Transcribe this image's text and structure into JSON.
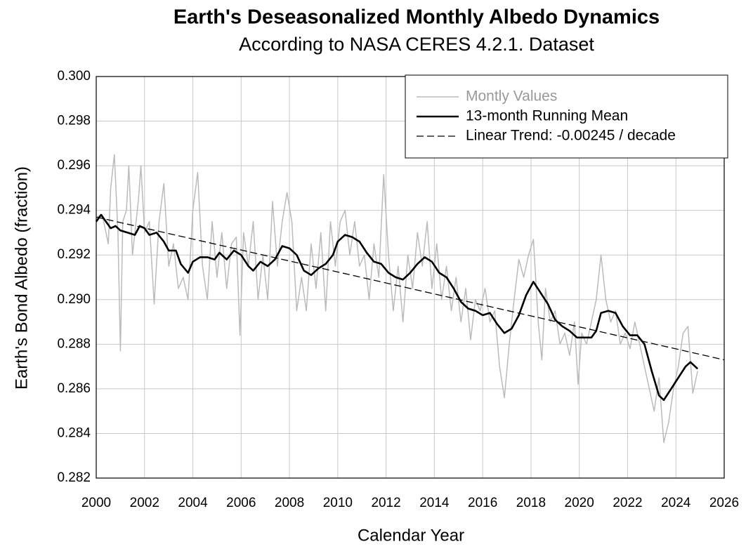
{
  "chart_data": {
    "type": "line",
    "title": "Earth's Deseasonalized Monthly Albedo Dynamics",
    "subtitle": "According to NASA CERES 4.2.1. Dataset",
    "x_label": "Calendar Year",
    "y_label": "Earth's Bond Albedo (fraction)",
    "xlim": [
      2000,
      2026
    ],
    "xticks": [
      2000,
      2002,
      2004,
      2006,
      2008,
      2010,
      2012,
      2014,
      2016,
      2018,
      2020,
      2022,
      2024,
      2026
    ],
    "ylim": [
      0.282,
      0.3
    ],
    "yticks": [
      {
        "value": 0.282,
        "label": "0.282"
      },
      {
        "value": 0.284,
        "label": "0.284"
      },
      {
        "value": 0.286,
        "label": "0.286"
      },
      {
        "value": 0.288,
        "label": "0.288"
      },
      {
        "value": 0.29,
        "label": "0.290"
      },
      {
        "value": 0.292,
        "label": "0.292"
      },
      {
        "value": 0.294,
        "label": "0.294"
      },
      {
        "value": 0.296,
        "label": "0.296"
      },
      {
        "value": 0.298,
        "label": "0.298"
      },
      {
        "value": 0.3,
        "label": "0.300"
      }
    ],
    "grid": true,
    "legend": "upper right",
    "series": [
      {
        "name": "Montly Values",
        "color": "#bbbbbb",
        "width": 1.5,
        "dash": false,
        "x": [
          2000.0,
          2000.25,
          2000.5,
          2000.6,
          2000.75,
          2000.9,
          2001.0,
          2001.1,
          2001.25,
          2001.35,
          2001.5,
          2001.75,
          2001.85,
          2002.0,
          2002.2,
          2002.4,
          2002.6,
          2002.8,
          2003.0,
          2003.2,
          2003.4,
          2003.6,
          2003.8,
          2004.0,
          2004.2,
          2004.4,
          2004.6,
          2004.8,
          2005.0,
          2005.2,
          2005.4,
          2005.6,
          2005.8,
          2005.95,
          2006.1,
          2006.3,
          2006.5,
          2006.7,
          2006.9,
          2007.1,
          2007.3,
          2007.5,
          2007.7,
          2007.9,
          2008.1,
          2008.3,
          2008.5,
          2008.7,
          2008.9,
          2009.1,
          2009.3,
          2009.5,
          2009.7,
          2009.9,
          2010.1,
          2010.3,
          2010.5,
          2010.7,
          2010.9,
          2011.1,
          2011.3,
          2011.5,
          2011.7,
          2011.9,
          2012.1,
          2012.3,
          2012.5,
          2012.7,
          2012.9,
          2013.1,
          2013.3,
          2013.5,
          2013.7,
          2013.9,
          2014.1,
          2014.3,
          2014.5,
          2014.7,
          2014.9,
          2015.1,
          2015.3,
          2015.5,
          2015.7,
          2015.9,
          2016.1,
          2016.3,
          2016.5,
          2016.7,
          2016.9,
          2017.1,
          2017.3,
          2017.5,
          2017.7,
          2017.9,
          2018.1,
          2018.3,
          2018.45,
          2018.6,
          2018.8,
          2019.0,
          2019.2,
          2019.4,
          2019.6,
          2019.8,
          2019.95,
          2020.1,
          2020.3,
          2020.5,
          2020.7,
          2020.9,
          2021.1,
          2021.3,
          2021.5,
          2021.7,
          2021.9,
          2022.1,
          2022.3,
          2022.5,
          2022.7,
          2022.9,
          2023.1,
          2023.3,
          2023.5,
          2023.7,
          2023.9,
          2024.1,
          2024.3,
          2024.5,
          2024.7,
          2024.9
        ],
        "values": [
          0.2937,
          0.2938,
          0.2925,
          0.295,
          0.2965,
          0.293,
          0.2877,
          0.2935,
          0.294,
          0.296,
          0.292,
          0.2945,
          0.296,
          0.293,
          0.2935,
          0.2898,
          0.2935,
          0.2952,
          0.2915,
          0.2925,
          0.2905,
          0.291,
          0.29,
          0.294,
          0.2957,
          0.2915,
          0.29,
          0.2935,
          0.291,
          0.293,
          0.2905,
          0.2925,
          0.2928,
          0.2884,
          0.293,
          0.2915,
          0.2935,
          0.29,
          0.292,
          0.29,
          0.2944,
          0.2915,
          0.2935,
          0.2948,
          0.2935,
          0.2895,
          0.291,
          0.2895,
          0.2925,
          0.2905,
          0.293,
          0.2895,
          0.2935,
          0.2915,
          0.2935,
          0.294,
          0.292,
          0.2935,
          0.2915,
          0.292,
          0.29,
          0.2925,
          0.291,
          0.2956,
          0.292,
          0.2895,
          0.2915,
          0.289,
          0.292,
          0.2905,
          0.293,
          0.2915,
          0.2935,
          0.2905,
          0.2925,
          0.29,
          0.2915,
          0.2895,
          0.291,
          0.289,
          0.2905,
          0.2882,
          0.29,
          0.2895,
          0.2905,
          0.289,
          0.2895,
          0.287,
          0.2856,
          0.288,
          0.29,
          0.2918,
          0.291,
          0.292,
          0.2927,
          0.289,
          0.2873,
          0.2905,
          0.289,
          0.2895,
          0.288,
          0.2885,
          0.2875,
          0.289,
          0.2862,
          0.2885,
          0.288,
          0.289,
          0.29,
          0.292,
          0.29,
          0.289,
          0.2895,
          0.288,
          0.2885,
          0.2878,
          0.289,
          0.288,
          0.287,
          0.286,
          0.285,
          0.2865,
          0.2836,
          0.2845,
          0.286,
          0.287,
          0.2885,
          0.2888,
          0.2858,
          0.2868
        ]
      },
      {
        "name": "13-month Running Mean",
        "color": "#000000",
        "width": 2.6,
        "dash": false,
        "x": [
          2000.0,
          2000.2,
          2000.4,
          2000.6,
          2000.8,
          2001.0,
          2001.3,
          2001.6,
          2001.8,
          2002.0,
          2002.2,
          2002.5,
          2002.8,
          2003.0,
          2003.3,
          2003.5,
          2003.8,
          2004.0,
          2004.3,
          2004.6,
          2004.9,
          2005.1,
          2005.4,
          2005.7,
          2006.0,
          2006.3,
          2006.5,
          2006.8,
          2007.1,
          2007.4,
          2007.7,
          2008.0,
          2008.3,
          2008.6,
          2008.9,
          2009.2,
          2009.5,
          2009.8,
          2010.0,
          2010.3,
          2010.6,
          2010.9,
          2011.2,
          2011.5,
          2011.8,
          2012.1,
          2012.4,
          2012.7,
          2013.0,
          2013.3,
          2013.6,
          2013.9,
          2014.2,
          2014.5,
          2014.8,
          2015.1,
          2015.4,
          2015.7,
          2016.0,
          2016.3,
          2016.6,
          2016.9,
          2017.2,
          2017.5,
          2017.8,
          2018.1,
          2018.4,
          2018.7,
          2019.0,
          2019.3,
          2019.6,
          2019.9,
          2020.2,
          2020.5,
          2020.7,
          2020.9,
          2021.2,
          2021.5,
          2021.8,
          2022.1,
          2022.4,
          2022.7,
          2023.0,
          2023.3,
          2023.5,
          2023.8,
          2024.1,
          2024.4,
          2024.6,
          2024.9
        ],
        "values": [
          0.2935,
          0.2938,
          0.2935,
          0.2932,
          0.2933,
          0.2931,
          0.293,
          0.2929,
          0.2933,
          0.2932,
          0.2929,
          0.293,
          0.2926,
          0.2922,
          0.2922,
          0.2916,
          0.2912,
          0.2917,
          0.2919,
          0.2919,
          0.2918,
          0.2921,
          0.2918,
          0.2922,
          0.292,
          0.2915,
          0.2913,
          0.2917,
          0.2915,
          0.2918,
          0.2924,
          0.2923,
          0.292,
          0.2913,
          0.2911,
          0.2914,
          0.2916,
          0.292,
          0.2926,
          0.2929,
          0.2928,
          0.2926,
          0.2921,
          0.2917,
          0.2916,
          0.2912,
          0.291,
          0.2909,
          0.2912,
          0.2916,
          0.2919,
          0.2917,
          0.2912,
          0.291,
          0.2905,
          0.2899,
          0.2896,
          0.2895,
          0.2893,
          0.2894,
          0.2889,
          0.2885,
          0.2887,
          0.2893,
          0.2902,
          0.2908,
          0.2903,
          0.2898,
          0.2891,
          0.2888,
          0.2886,
          0.2883,
          0.2883,
          0.2883,
          0.2886,
          0.2894,
          0.2895,
          0.2894,
          0.2888,
          0.2884,
          0.2884,
          0.288,
          0.2868,
          0.2857,
          0.2855,
          0.286,
          0.2865,
          0.287,
          0.2872,
          0.2869
        ]
      },
      {
        "name": "Linear Trend: -0.00245 / decade",
        "color": "#000000",
        "width": 1.3,
        "dash": true,
        "x": [
          2000,
          2026
        ],
        "values": [
          0.2937,
          0.2873
        ]
      }
    ]
  }
}
